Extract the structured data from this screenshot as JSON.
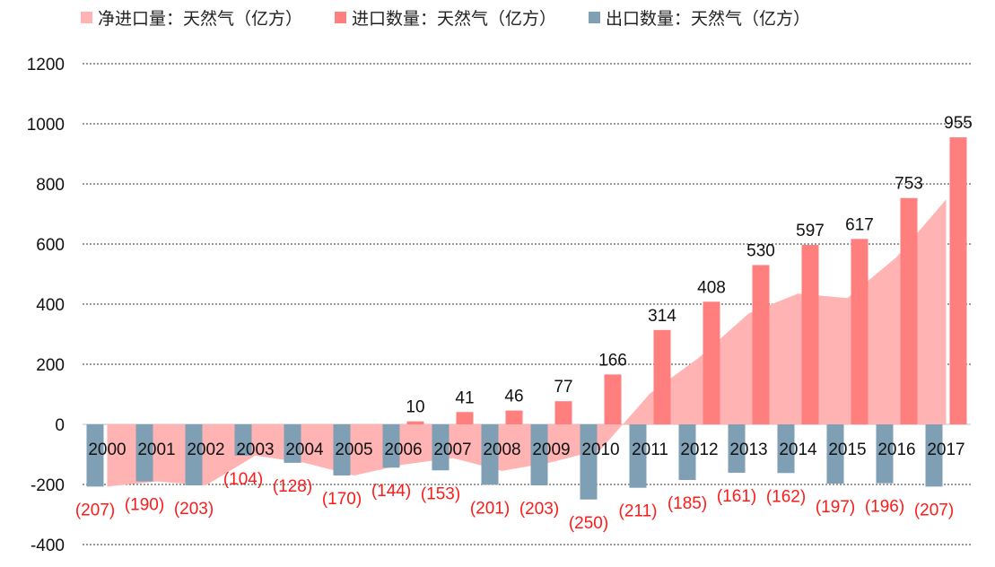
{
  "legend": {
    "net_import": "净进口量：天然气（亿方）",
    "import": "进口数量：天然气（亿方）",
    "export": "出口数量：天然气（亿方）"
  },
  "colors": {
    "net_import": "#ffb3b3",
    "import": "#ff7f7f",
    "export": "#7f9fb5",
    "export_label": "#ff1a1a",
    "grid": "#333333"
  },
  "chart_data": {
    "type": "bar",
    "title": "",
    "xlabel": "",
    "ylabel": "",
    "ylim": [
      -400,
      1200
    ],
    "yticks": [
      1200,
      1000,
      800,
      600,
      400,
      200,
      0,
      -200,
      -400
    ],
    "grid": true,
    "legend_position": "top",
    "categories": [
      "2000",
      "2001",
      "2002",
      "2003",
      "2004",
      "2005",
      "2006",
      "2007",
      "2008",
      "2009",
      "2010",
      "2011",
      "2012",
      "2013",
      "2014",
      "2015",
      "2016",
      "2017"
    ],
    "series": [
      {
        "name": "净进口量：天然气（亿方）",
        "type": "area",
        "values": [
          -207,
          -190,
          -203,
          -104,
          -128,
          -170,
          -134,
          -112,
          -155,
          -126,
          -84,
          103,
          223,
          369,
          435,
          420,
          557,
          748
        ]
      },
      {
        "name": "进口数量：天然气（亿方）",
        "type": "bar",
        "values": [
          0,
          0,
          0,
          0,
          0,
          0,
          10,
          41,
          46,
          77,
          166,
          314,
          408,
          530,
          597,
          617,
          753,
          955
        ],
        "labels": [
          "",
          "",
          "",
          "",
          "",
          "",
          "10",
          "41",
          "46",
          "77",
          "166",
          "314",
          "408",
          "530",
          "597",
          "617",
          "753",
          "955"
        ]
      },
      {
        "name": "出口数量：天然气（亿方）",
        "type": "bar",
        "values": [
          -207,
          -190,
          -203,
          -104,
          -128,
          -170,
          -144,
          -153,
          -201,
          -203,
          -250,
          -211,
          -185,
          -161,
          -162,
          -197,
          -196,
          -207
        ],
        "labels": [
          "(207)",
          "(190)",
          "(203)",
          "(104)",
          "(128)",
          "(170)",
          "(144)",
          "(153)",
          "(201)",
          "(203)",
          "(250)",
          "(211)",
          "(185)",
          "(161)",
          "(162)",
          "(197)",
          "(196)",
          "(207)"
        ]
      }
    ]
  }
}
